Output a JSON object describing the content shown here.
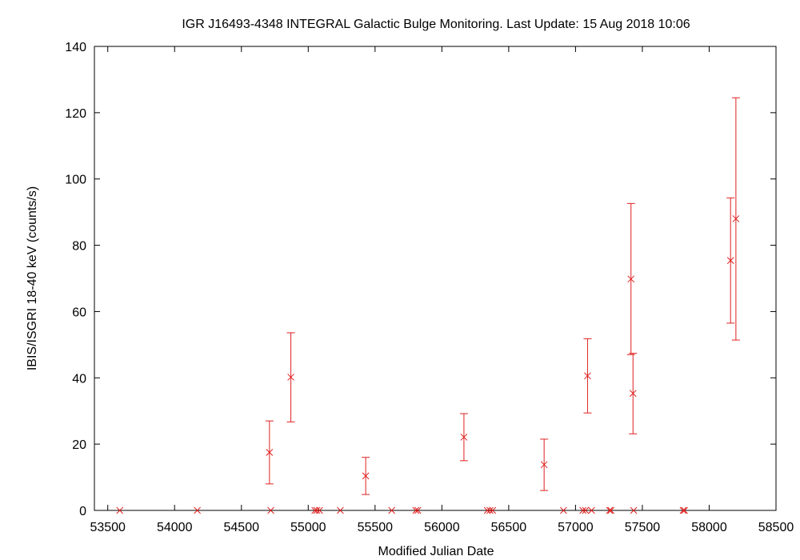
{
  "chart_data": {
    "type": "scatter",
    "title": "IGR J16493-4348   INTEGRAL Galactic Bulge Monitoring.  Last Update: 15 Aug 2018 10:06",
    "xlabel": "Modified Julian Date",
    "ylabel": "IBIS/ISGRI 18-40 keV (counts/s)",
    "xlim": [
      53400,
      58500
    ],
    "ylim": [
      0,
      140
    ],
    "xticks": [
      53500,
      54000,
      54500,
      55000,
      55500,
      56000,
      56500,
      57000,
      57500,
      58000,
      58500
    ],
    "yticks": [
      0,
      20,
      40,
      60,
      80,
      100,
      120,
      140
    ],
    "grid": false,
    "marker_color": "#e02020",
    "points": [
      {
        "x": 53590,
        "y": 0
      },
      {
        "x": 54170,
        "y": 0
      },
      {
        "x": 54710,
        "y": 17.5,
        "lo": 8,
        "hi": 27
      },
      {
        "x": 54720,
        "y": 0
      },
      {
        "x": 54870,
        "y": 40.2,
        "lo": 26.7,
        "hi": 53.6
      },
      {
        "x": 55050,
        "y": 0
      },
      {
        "x": 55065,
        "y": 0
      },
      {
        "x": 55085,
        "y": 0
      },
      {
        "x": 55240,
        "y": 0
      },
      {
        "x": 55430,
        "y": 10.4,
        "lo": 4.8,
        "hi": 16
      },
      {
        "x": 55625,
        "y": 0
      },
      {
        "x": 55805,
        "y": 0
      },
      {
        "x": 55820,
        "y": 0
      },
      {
        "x": 56165,
        "y": 22.1,
        "lo": 15,
        "hi": 29.2
      },
      {
        "x": 56340,
        "y": 0
      },
      {
        "x": 56360,
        "y": 0
      },
      {
        "x": 56380,
        "y": 0
      },
      {
        "x": 56765,
        "y": 13.8,
        "lo": 6,
        "hi": 21.5
      },
      {
        "x": 56910,
        "y": 0
      },
      {
        "x": 57055,
        "y": 0
      },
      {
        "x": 57075,
        "y": 0
      },
      {
        "x": 57090,
        "y": 40.6,
        "lo": 29.4,
        "hi": 51.8
      },
      {
        "x": 57120,
        "y": 0
      },
      {
        "x": 57255,
        "y": 0
      },
      {
        "x": 57265,
        "y": 0
      },
      {
        "x": 57415,
        "y": 69.8,
        "lo": 47,
        "hi": 92.6
      },
      {
        "x": 57430,
        "y": 35.3,
        "lo": 23.1,
        "hi": 47.4
      },
      {
        "x": 57435,
        "y": 0
      },
      {
        "x": 57805,
        "y": 0
      },
      {
        "x": 57815,
        "y": 0
      },
      {
        "x": 58160,
        "y": 75.4,
        "lo": 56.5,
        "hi": 94.3
      },
      {
        "x": 58200,
        "y": 88,
        "lo": 51.4,
        "hi": 124.5
      }
    ]
  }
}
